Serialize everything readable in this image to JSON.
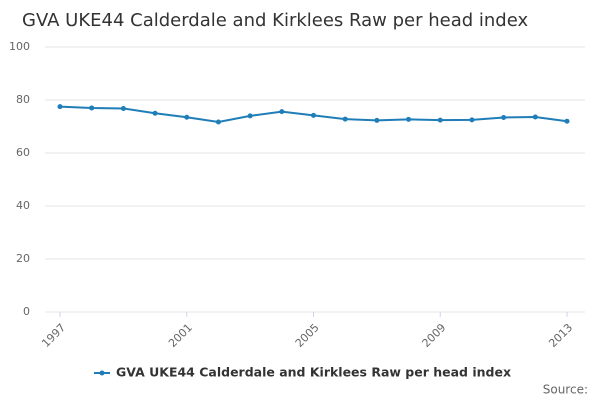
{
  "chart_data": {
    "type": "line",
    "title": "GVA UKE44 Calderdale and Kirklees Raw per head index",
    "x": [
      1997,
      1998,
      1999,
      2000,
      2001,
      2002,
      2003,
      2004,
      2005,
      2006,
      2007,
      2008,
      2009,
      2010,
      2011,
      2012,
      2013
    ],
    "series": [
      {
        "name": "GVA UKE44 Calderdale and Kirklees Raw per head index",
        "color": "#1f7db8",
        "values": [
          77.5,
          77,
          76.8,
          75,
          73.5,
          71.7,
          74,
          75.6,
          74.2,
          72.8,
          72.3,
          72.7,
          72.4,
          72.5,
          73.4,
          73.6,
          72
        ]
      }
    ],
    "xlim": [
      1997,
      2013
    ],
    "xticks": [
      1997,
      2001,
      2005,
      2009,
      2013
    ],
    "ylim": [
      0,
      100
    ],
    "yticks": [
      0,
      20,
      40,
      60,
      80,
      100
    ],
    "grid": true,
    "source": "Source:"
  }
}
